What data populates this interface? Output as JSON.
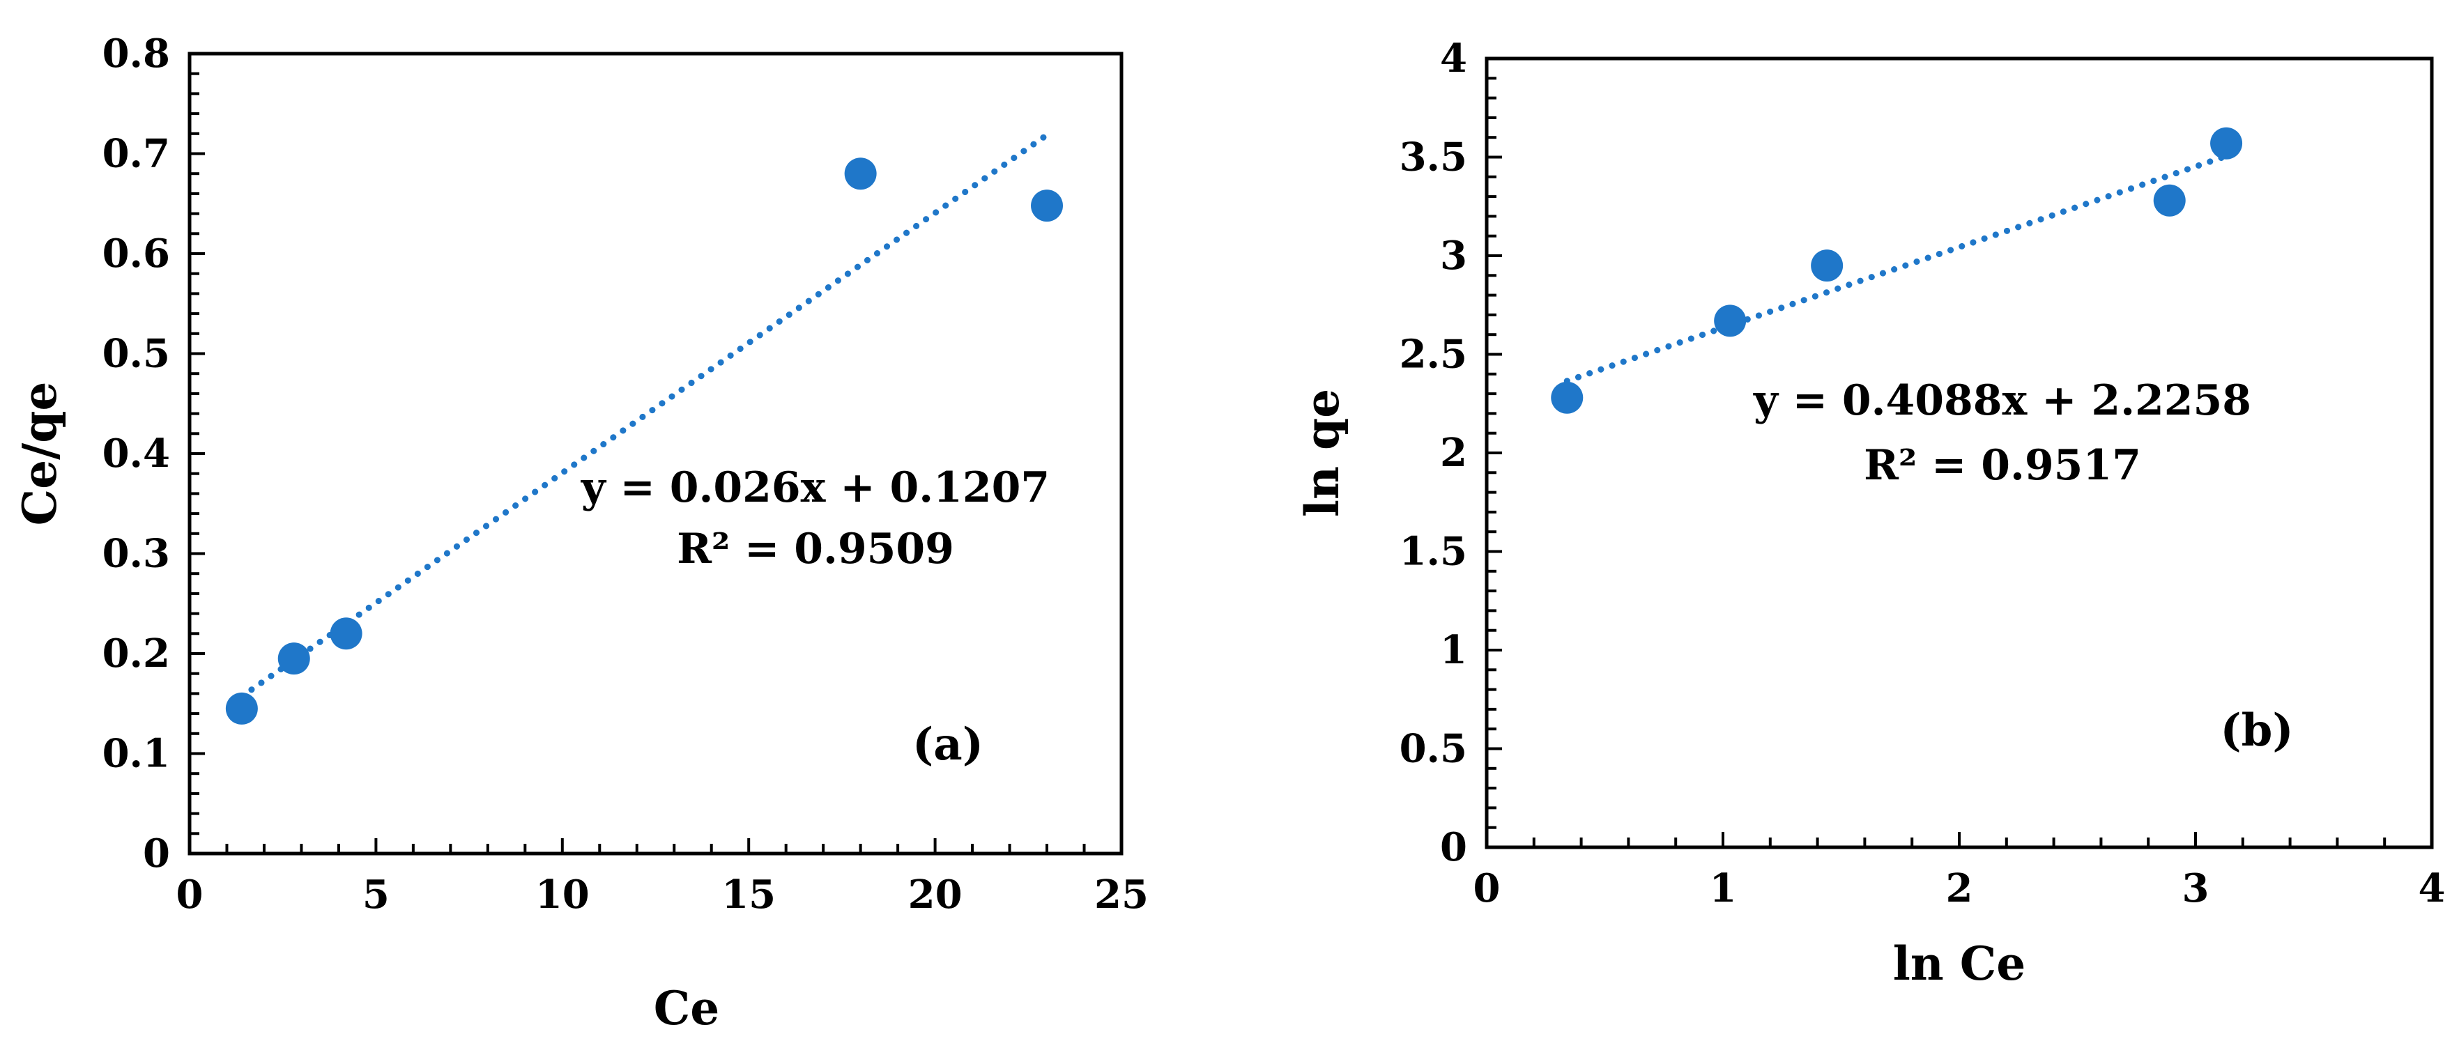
{
  "colors": {
    "marker": "#1f77c9",
    "trendline": "#1f77c9",
    "axis": "#000000"
  },
  "chart_data": [
    {
      "type": "scatter",
      "xlabel": "Ce",
      "ylabel": "Ce/qe",
      "panel_label": "(a)",
      "xlim": [
        0,
        25
      ],
      "ylim": [
        0,
        0.8
      ],
      "x_major": 5,
      "y_major": 0.1,
      "x_ticks": [
        "0",
        "5",
        "10",
        "15",
        "20",
        "25"
      ],
      "y_ticks": [
        "0",
        "0.1",
        "0.2",
        "0.3",
        "0.4",
        "0.5",
        "0.6",
        "0.7",
        "0.8"
      ],
      "points": [
        {
          "x": 1.4,
          "y": 0.145
        },
        {
          "x": 2.8,
          "y": 0.195
        },
        {
          "x": 4.2,
          "y": 0.22
        },
        {
          "x": 18.0,
          "y": 0.68
        },
        {
          "x": 23.0,
          "y": 0.648
        }
      ],
      "trendline": {
        "slope": 0.026,
        "intercept": 0.1207,
        "x_range": [
          1.4,
          23.0
        ]
      },
      "equation": "y = 0.026x + 0.1207",
      "r_squared": "R² = 0.9509"
    },
    {
      "type": "scatter",
      "xlabel": "ln Ce",
      "ylabel": "ln qe",
      "panel_label": "(b)",
      "xlim": [
        0,
        4
      ],
      "ylim": [
        0,
        4
      ],
      "x_major": 1,
      "y_major": 0.5,
      "x_ticks": [
        "0",
        "1",
        "2",
        "3",
        "4"
      ],
      "y_ticks": [
        "0",
        "0.5",
        "1",
        "1.5",
        "2",
        "2.5",
        "3",
        "3.5",
        "4"
      ],
      "points": [
        {
          "x": 0.34,
          "y": 2.28
        },
        {
          "x": 1.03,
          "y": 2.67
        },
        {
          "x": 1.44,
          "y": 2.95
        },
        {
          "x": 2.89,
          "y": 3.28
        },
        {
          "x": 3.13,
          "y": 3.57
        }
      ],
      "trendline": {
        "slope": 0.4088,
        "intercept": 2.2258,
        "x_range": [
          0.34,
          3.13
        ]
      },
      "equation": "y = 0.4088x + 2.2258",
      "r_squared": "R² = 0.9517"
    }
  ]
}
